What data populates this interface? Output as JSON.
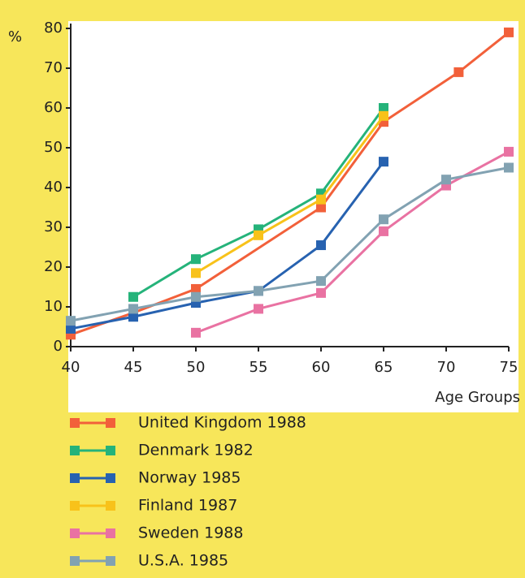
{
  "chart_data": {
    "type": "line",
    "ylabel": "%",
    "xlabel": "Age Groups",
    "xlim": [
      40,
      75
    ],
    "xticks": [
      40,
      45,
      50,
      55,
      60,
      65,
      70,
      75
    ],
    "ylim": [
      0,
      80
    ],
    "yticks": [
      0,
      10,
      20,
      30,
      40,
      50,
      60,
      70,
      80
    ],
    "series": [
      {
        "name": "United Kingdom 1988",
        "color": "#f2603a",
        "x": [
          40,
          45,
          50,
          60,
          65,
          71,
          75
        ],
        "values": [
          3,
          8.5,
          14.5,
          35,
          56.5,
          69,
          79
        ]
      },
      {
        "name": "Denmark 1982",
        "color": "#25b37a",
        "x": [
          45,
          50,
          55,
          60,
          65
        ],
        "values": [
          12.5,
          22,
          29.5,
          38.5,
          60
        ]
      },
      {
        "name": "Norway 1985",
        "color": "#2762b0",
        "x": [
          40,
          45,
          50,
          55,
          60,
          65
        ],
        "values": [
          4.5,
          7.5,
          11,
          14,
          25.5,
          46.5
        ]
      },
      {
        "name": "Finland 1987",
        "color": "#f8c21a",
        "x": [
          50,
          55,
          60,
          65
        ],
        "values": [
          18.5,
          28,
          37,
          58
        ]
      },
      {
        "name": "Sweden 1988",
        "color": "#e972a2",
        "x": [
          50,
          55,
          60,
          65,
          70,
          75
        ],
        "values": [
          3.5,
          9.5,
          13.5,
          29,
          40.5,
          49
        ]
      },
      {
        "name": "U.S.A. 1985",
        "color": "#82a2b2",
        "x": [
          40,
          45,
          50,
          55,
          60,
          65,
          70,
          75
        ],
        "values": [
          6.5,
          9.5,
          12.5,
          14,
          16.5,
          32,
          42,
          45
        ]
      }
    ]
  }
}
